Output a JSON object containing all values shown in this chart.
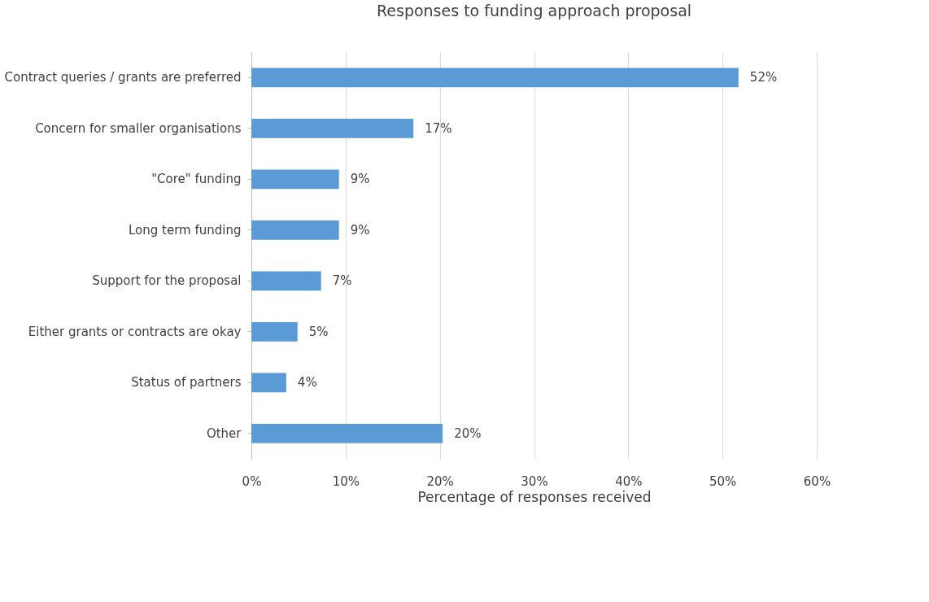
{
  "chart_data": {
    "type": "bar",
    "orientation": "horizontal",
    "title": "Responses to funding approach proposal",
    "xlabel": "Percentage of responses received",
    "categories": [
      "Contract queries / grants are preferred",
      "Concern for smaller organisations",
      "\"Core\" funding",
      "Long term funding",
      "Support for the proposal",
      "Either grants or contracts are okay",
      "Status of partners",
      "Other"
    ],
    "values": [
      51.7,
      17.2,
      9.3,
      9.3,
      7.4,
      4.9,
      3.7,
      20.3
    ],
    "value_labels": [
      "52%",
      "17%",
      "9%",
      "9%",
      "7%",
      "5%",
      "4%",
      "20%"
    ],
    "color": "#5b9bd5",
    "xlim": [
      0,
      60
    ],
    "xticks": [
      {
        "value": 0,
        "label": "0%"
      },
      {
        "value": 10,
        "label": "10%"
      },
      {
        "value": 20,
        "label": "20%"
      },
      {
        "value": 30,
        "label": "30%"
      },
      {
        "value": 40,
        "label": "40%"
      },
      {
        "value": 50,
        "label": "50%"
      },
      {
        "value": 60,
        "label": "60%"
      }
    ],
    "grid": "x"
  }
}
